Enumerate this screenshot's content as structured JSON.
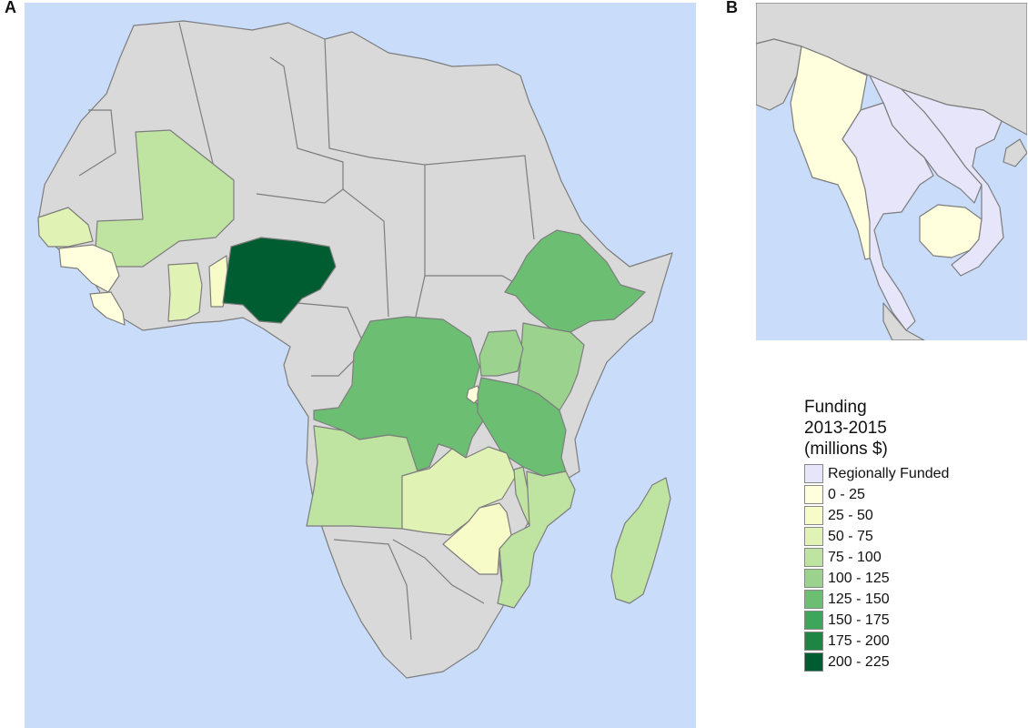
{
  "panels": {
    "a": "A",
    "b": "B"
  },
  "colors": {
    "ocean": "#c9dcf9",
    "no_data": "#d9d9d9",
    "border": "#7d7d7d"
  },
  "legend": {
    "title_lines": [
      "Funding",
      "2013-2015",
      "(millions $)"
    ],
    "bins": [
      {
        "label": "Regionally Funded",
        "color": "#e7e5f9"
      },
      {
        "label": "0 - 25",
        "color": "#ffffdd"
      },
      {
        "label": "25 - 50",
        "color": "#f7fbc7"
      },
      {
        "label": "50 - 75",
        "color": "#e1f2b5"
      },
      {
        "label": "75 - 100",
        "color": "#bfe3a0"
      },
      {
        "label": "100 - 125",
        "color": "#9bd38e"
      },
      {
        "label": "125 - 150",
        "color": "#6cbe73"
      },
      {
        "label": "150 - 175",
        "color": "#3ea65a"
      },
      {
        "label": "175 - 200",
        "color": "#1e8544"
      },
      {
        "label": "200 - 225",
        "color": "#005c31"
      }
    ]
  },
  "map_a_fill_bins": {
    "nigeria": 9,
    "ethiopia": 6,
    "drc": 6,
    "tanzania": 6,
    "kenya": 5,
    "uganda": 5,
    "mali": 4,
    "angola": 4,
    "mozambique": 4,
    "madagascar": 4,
    "malawi": 4,
    "ghana": 3,
    "zambia": 3,
    "senegal": 3,
    "zimbabwe": 2,
    "benin": 2,
    "rwanda": 1,
    "liberia": 1,
    "guinea": 1
  },
  "map_b_fill_bins": {
    "myanmar": 1,
    "cambodia": 1,
    "thailand": 0,
    "laos": 0,
    "vietnam": 0
  }
}
